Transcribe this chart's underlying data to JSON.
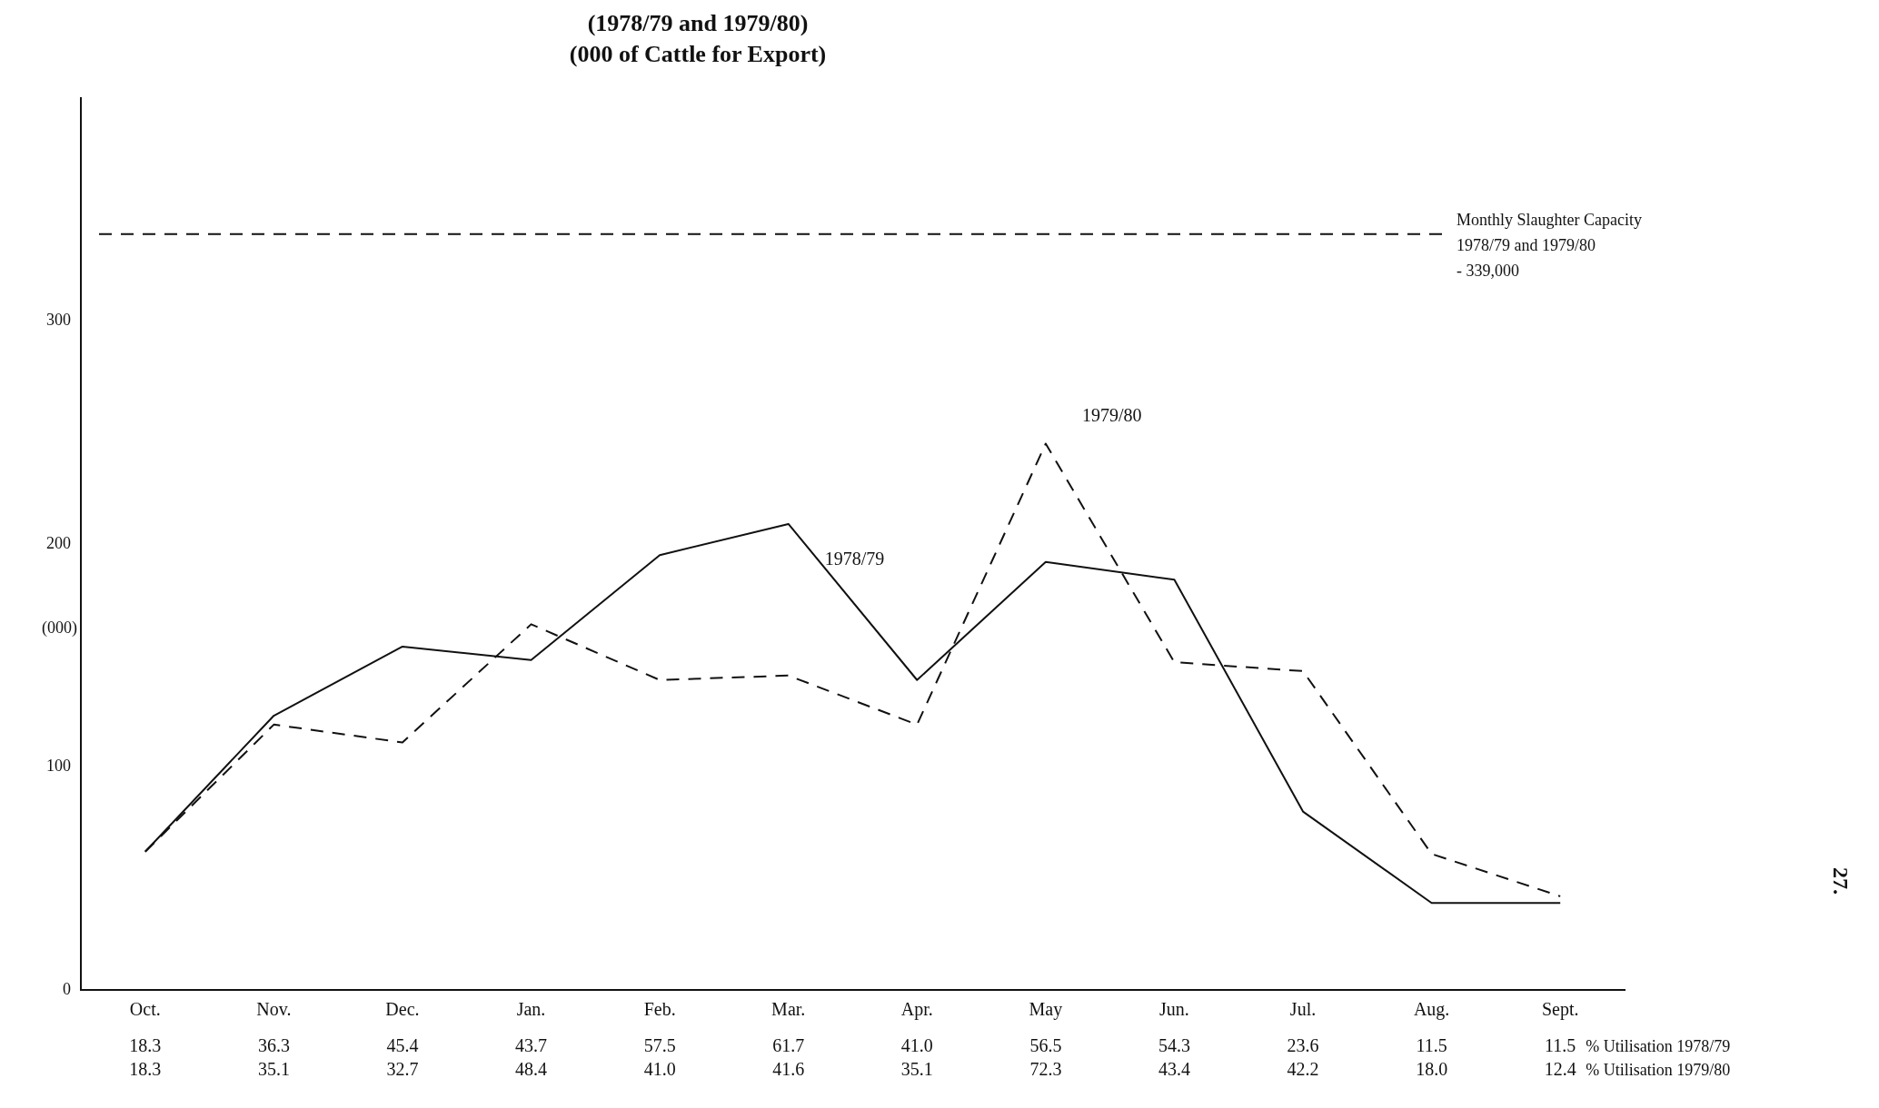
{
  "chart_data": {
    "type": "line",
    "title": "(1978/79 and 1979/80)",
    "subtitle": "(000 of Cattle for Export)",
    "ylabel": "(000)",
    "categories": [
      "Oct.",
      "Nov.",
      "Dec.",
      "Jan.",
      "Feb.",
      "Mar.",
      "Apr.",
      "May",
      "Jun.",
      "Jul.",
      "Aug.",
      "Sept."
    ],
    "series": [
      {
        "name": "1978/79",
        "color": "#111111",
        "line_style": "solid",
        "values": [
          62,
          123,
          154,
          148,
          195,
          209,
          139,
          192,
          184,
          80,
          39,
          39
        ]
      },
      {
        "name": "1979/80",
        "color": "#111111",
        "line_style": "dashed",
        "values": [
          62,
          119,
          111,
          164,
          139,
          141,
          119,
          245,
          147,
          143,
          61,
          42
        ]
      }
    ],
    "ylim": [
      0,
      400
    ],
    "yticks": [
      0,
      100,
      200,
      300
    ],
    "grid": false,
    "legend": false,
    "marker": "none",
    "ref_lines": [
      {
        "axis": "y",
        "value": 339,
        "label": "Monthly Slaughter Capacity\n1978/79 and 1979/80\n- 339,000",
        "line_style": "dashed",
        "color": "#111111"
      }
    ],
    "annotations": [
      "18.3",
      "36.3",
      "45.4",
      "43.7",
      "57.5",
      "61.7",
      "41.0",
      "56.5",
      "54.3",
      "23.6",
      "11.5",
      "11.5",
      "% Utilisation 1978/79",
      "18.3",
      "35.1",
      "32.7",
      "48.4",
      "41.0",
      "41.6",
      "35.1",
      "72.3",
      "43.4",
      "42.2",
      "18.0",
      "12.4",
      "% Utilisation 1979/80",
      "27."
    ]
  }
}
